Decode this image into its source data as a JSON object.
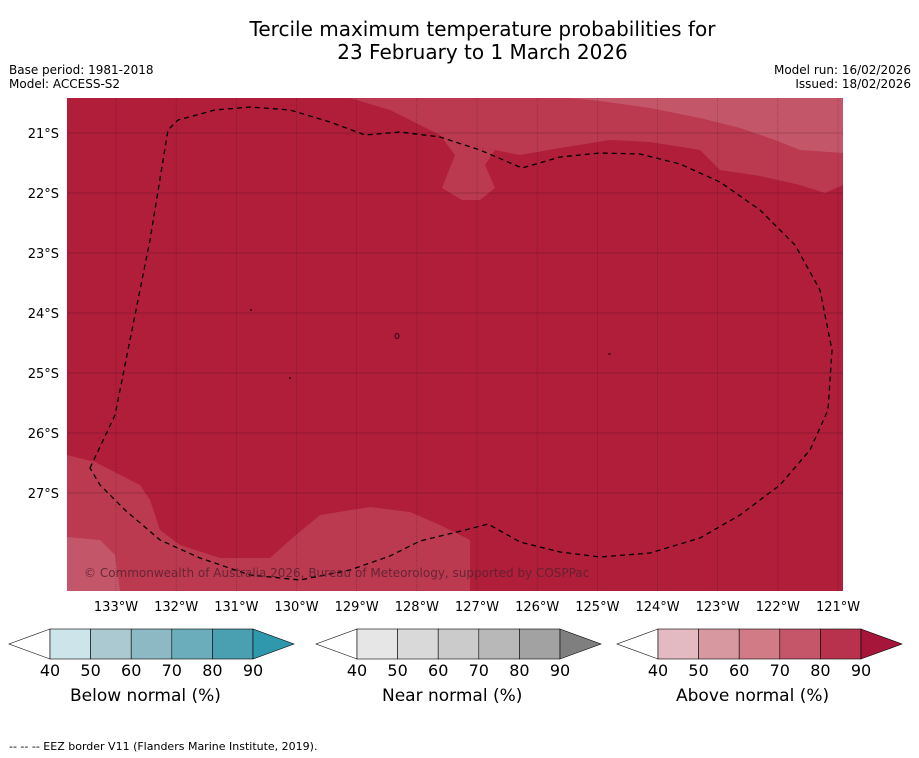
{
  "title": {
    "line1": "Tercile maximum temperature probabilities for",
    "line2": "23 February to 1 March 2026"
  },
  "meta": {
    "base_period": "Base period: 1981-2018",
    "model": "Model: ACCESS-S2",
    "model_run": "Model run: 16/02/2026",
    "issued": "Issued: 18/02/2026"
  },
  "map": {
    "latitude_labels": [
      "21°S",
      "22°S",
      "23°S",
      "24°S",
      "25°S",
      "26°S",
      "27°S"
    ],
    "longitude_labels": [
      "133°W",
      "132°W",
      "131°W",
      "130°W",
      "129°W",
      "128°W",
      "127°W",
      "126°W",
      "125°W",
      "124°W",
      "123°W",
      "122°W",
      "121°W"
    ],
    "attribution": "© Commonwealth of Australia 2026, Bureau of Meteorology, supported by COSPPac",
    "colors": {
      "above_90": "#b01e3a",
      "above_80": "#bb3a50",
      "above_70": "#c4566a",
      "grid": "#000000",
      "eez": "#000000"
    }
  },
  "colorbars": [
    {
      "name": "below",
      "label": "Below normal (%)",
      "ticks": [
        "40",
        "50",
        "60",
        "70",
        "80",
        "90"
      ],
      "colors": [
        "#ffffff",
        "#cde4ea",
        "#abc9d0",
        "#8cb9c4",
        "#6cadbc",
        "#4a9fb0",
        "#2f98ad"
      ]
    },
    {
      "name": "near",
      "label": "Near normal (%)",
      "ticks": [
        "40",
        "50",
        "60",
        "70",
        "80",
        "90"
      ],
      "colors": [
        "#ffffff",
        "#e6e6e6",
        "#d9d9d9",
        "#cbcbcb",
        "#b8b8b8",
        "#a2a2a2",
        "#7f7f7f"
      ]
    },
    {
      "name": "above",
      "label": "Above normal (%)",
      "ticks": [
        "40",
        "50",
        "60",
        "70",
        "80",
        "90"
      ],
      "colors": [
        "#ffffff",
        "#e3bac1",
        "#d8989f",
        "#d07b85",
        "#c5566a",
        "#b9324d",
        "#a5163a"
      ]
    }
  ],
  "footer": "--  --  -- EEZ border V11 (Flanders Marine Institute, 2019)."
}
